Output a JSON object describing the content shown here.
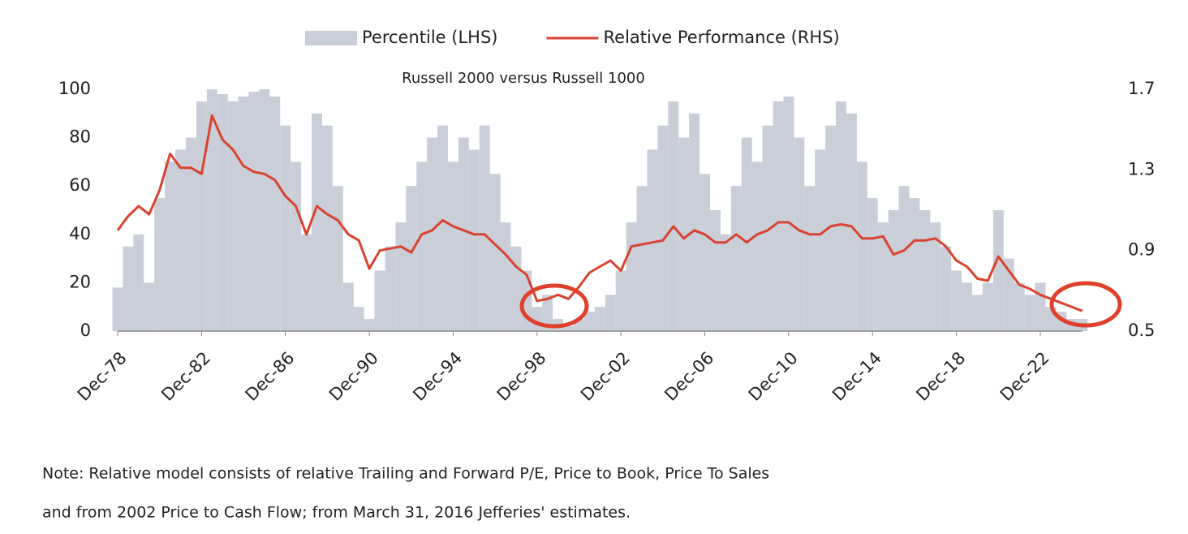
{
  "chart_data": {
    "type": "bar-line",
    "title": "Russell 2000 versus Russell 1000",
    "categories": [
      "Dec-78",
      null,
      null,
      null,
      null,
      null,
      null,
      null,
      "Dec-82",
      null,
      null,
      null,
      null,
      null,
      null,
      null,
      "Dec-86",
      null,
      null,
      null,
      null,
      null,
      null,
      null,
      "Dec-90",
      null,
      null,
      null,
      null,
      null,
      null,
      null,
      "Dec-94",
      null,
      null,
      null,
      null,
      null,
      null,
      null,
      "Dec-98",
      null,
      null,
      null,
      null,
      null,
      null,
      null,
      "Dec-02",
      null,
      null,
      null,
      null,
      null,
      null,
      null,
      "Dec-06",
      null,
      null,
      null,
      null,
      null,
      null,
      null,
      "Dec-10",
      null,
      null,
      null,
      null,
      null,
      null,
      null,
      "Dec-14",
      null,
      null,
      null,
      null,
      null,
      null,
      null,
      "Dec-18",
      null,
      null,
      null,
      null,
      null,
      null,
      null,
      "Dec-22",
      null,
      null,
      null,
      null
    ],
    "series": [
      {
        "name": "Percentile (LHS)",
        "kind": "bar",
        "color": "#c9ced8",
        "axis": "y",
        "values": [
          18,
          35,
          40,
          20,
          55,
          70,
          75,
          80,
          95,
          100,
          98,
          95,
          97,
          99,
          100,
          97,
          85,
          70,
          40,
          90,
          85,
          60,
          20,
          10,
          5,
          25,
          35,
          45,
          60,
          70,
          80,
          85,
          70,
          80,
          75,
          85,
          65,
          45,
          35,
          25,
          10,
          15,
          5,
          2,
          5,
          8,
          10,
          15,
          25,
          45,
          60,
          75,
          85,
          95,
          80,
          90,
          65,
          50,
          40,
          60,
          80,
          70,
          85,
          95,
          97,
          80,
          60,
          75,
          85,
          95,
          90,
          70,
          55,
          45,
          50,
          60,
          55,
          50,
          45,
          35,
          25,
          20,
          15,
          20,
          50,
          30,
          20,
          15,
          20,
          10,
          8,
          5,
          5
        ]
      },
      {
        "name": "Relative Performance (RHS)",
        "kind": "line",
        "color": "#d9432f",
        "axis": "y2",
        "values": [
          1.0,
          1.07,
          1.12,
          1.08,
          1.2,
          1.38,
          1.31,
          1.31,
          1.28,
          1.57,
          1.45,
          1.4,
          1.32,
          1.29,
          1.28,
          1.25,
          1.17,
          1.12,
          0.98,
          1.12,
          1.08,
          1.05,
          0.98,
          0.95,
          0.81,
          0.9,
          0.91,
          0.92,
          0.89,
          0.98,
          1.0,
          1.05,
          1.02,
          1.0,
          0.98,
          0.98,
          0.93,
          0.88,
          0.82,
          0.78,
          0.65,
          0.66,
          0.68,
          0.66,
          0.72,
          0.79,
          0.82,
          0.85,
          0.8,
          0.92,
          0.93,
          0.94,
          0.95,
          1.02,
          0.96,
          1.0,
          0.98,
          0.94,
          0.94,
          0.98,
          0.94,
          0.98,
          1.0,
          1.04,
          1.04,
          1.0,
          0.98,
          0.98,
          1.02,
          1.03,
          1.02,
          0.96,
          0.96,
          0.97,
          0.88,
          0.9,
          0.95,
          0.95,
          0.96,
          0.92,
          0.85,
          0.82,
          0.76,
          0.75,
          0.87,
          0.8,
          0.73,
          0.71,
          0.68,
          0.66,
          0.64,
          0.62,
          0.6
        ]
      }
    ],
    "ylim": [
      0,
      100
    ],
    "yticks": [
      0,
      20,
      40,
      60,
      80,
      100
    ],
    "y2lim": [
      0.5,
      1.7
    ],
    "y2ticks": [
      0.5,
      0.9,
      1.3,
      1.7
    ],
    "notes": [
      "Note: Relative  model consists of relative Trailing and Forward P/E, Price to Book, Price To Sales",
      "and from 2002 Price to Cash Flow; from March 31, 2016 Jefferies' estimates."
    ]
  }
}
